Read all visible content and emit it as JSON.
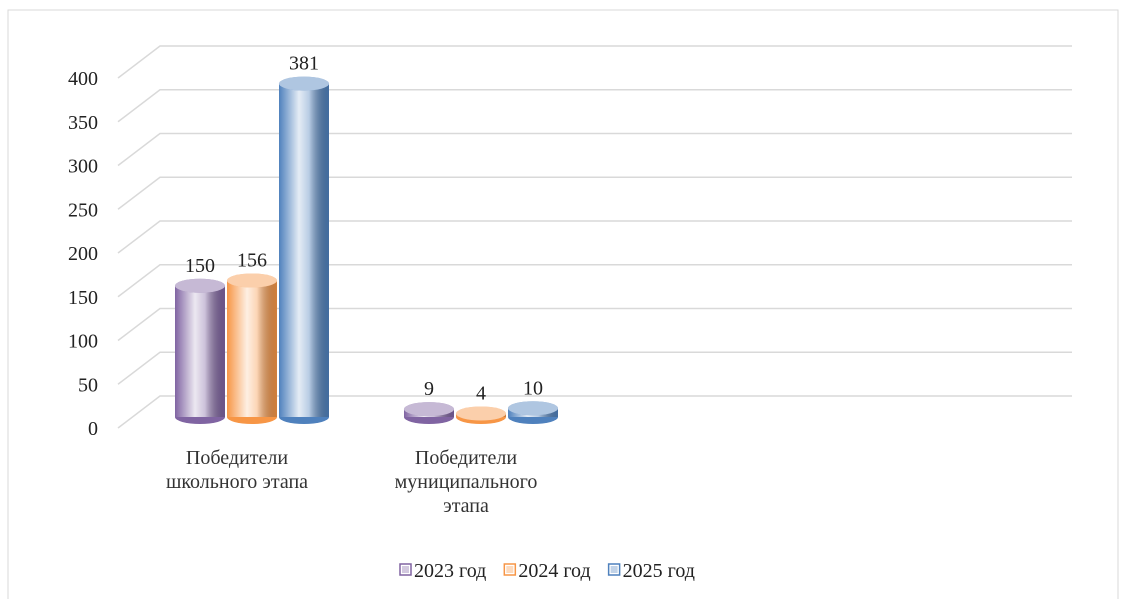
{
  "chart_data": {
    "type": "bar",
    "categories": [
      "Победители школьного этапа",
      "Победители муниципального этапа"
    ],
    "series": [
      {
        "name": "2023 год",
        "color": "#8064a2",
        "values": [
          150,
          9
        ]
      },
      {
        "name": "2024 год",
        "color": "#f79646",
        "values": [
          156,
          4
        ]
      },
      {
        "name": "2025 год",
        "color": "#4f81bd",
        "values": [
          381,
          10
        ]
      }
    ],
    "ylim": [
      0,
      400
    ],
    "yticks": [
      0,
      50,
      100,
      150,
      200,
      250,
      300,
      350,
      400
    ],
    "grid": true,
    "legend": "bottom"
  }
}
